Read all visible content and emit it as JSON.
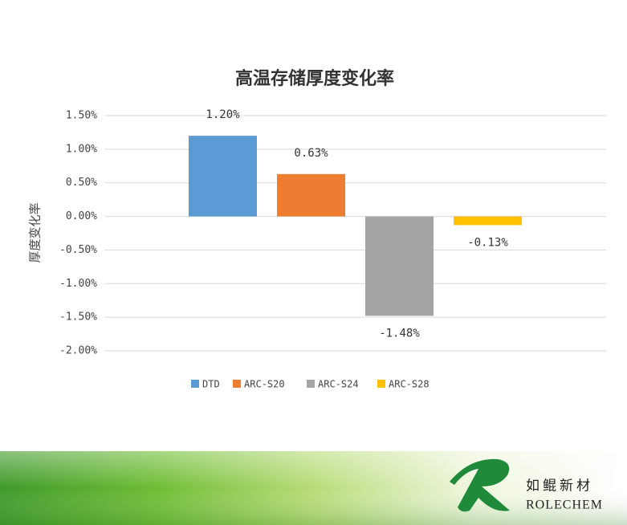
{
  "chart_data": {
    "type": "bar",
    "title": "高温存储厚度变化率",
    "y_label": "厚度变化率",
    "series": [
      {
        "name": "DTD",
        "color": "#5b9bd5",
        "values": [
          1.2
        ],
        "value_labels": [
          "1.20%"
        ]
      },
      {
        "name": "ARC-S20",
        "color": "#ed7d31",
        "values": [
          0.63
        ],
        "value_labels": [
          "0.63%"
        ]
      },
      {
        "name": "ARC-S24",
        "color": "#a5a5a5",
        "values": [
          -1.48
        ],
        "value_labels": [
          "-1.48%"
        ]
      },
      {
        "name": "ARC-S28",
        "color": "#ffc000",
        "values": [
          -0.13
        ],
        "value_labels": [
          "-0.13%"
        ]
      }
    ],
    "ylim": [
      -2.0,
      1.5
    ],
    "yticks": [
      {
        "value": -2.0,
        "label": "-2.00%"
      },
      {
        "value": -1.5,
        "label": "-1.50%"
      },
      {
        "value": -1.0,
        "label": "-1.00%"
      },
      {
        "value": -0.5,
        "label": "-0.50%"
      },
      {
        "value": 0,
        "label": "0.00%"
      },
      {
        "value": 0.5,
        "label": "0.50%"
      },
      {
        "value": 1.0,
        "label": "1.00%"
      },
      {
        "value": 1.5,
        "label": "1.50%"
      }
    ],
    "grid": true,
    "legend": "bottom"
  },
  "branding": {
    "name_cn": "如鲲新材",
    "name_en": "ROLECHEM"
  }
}
